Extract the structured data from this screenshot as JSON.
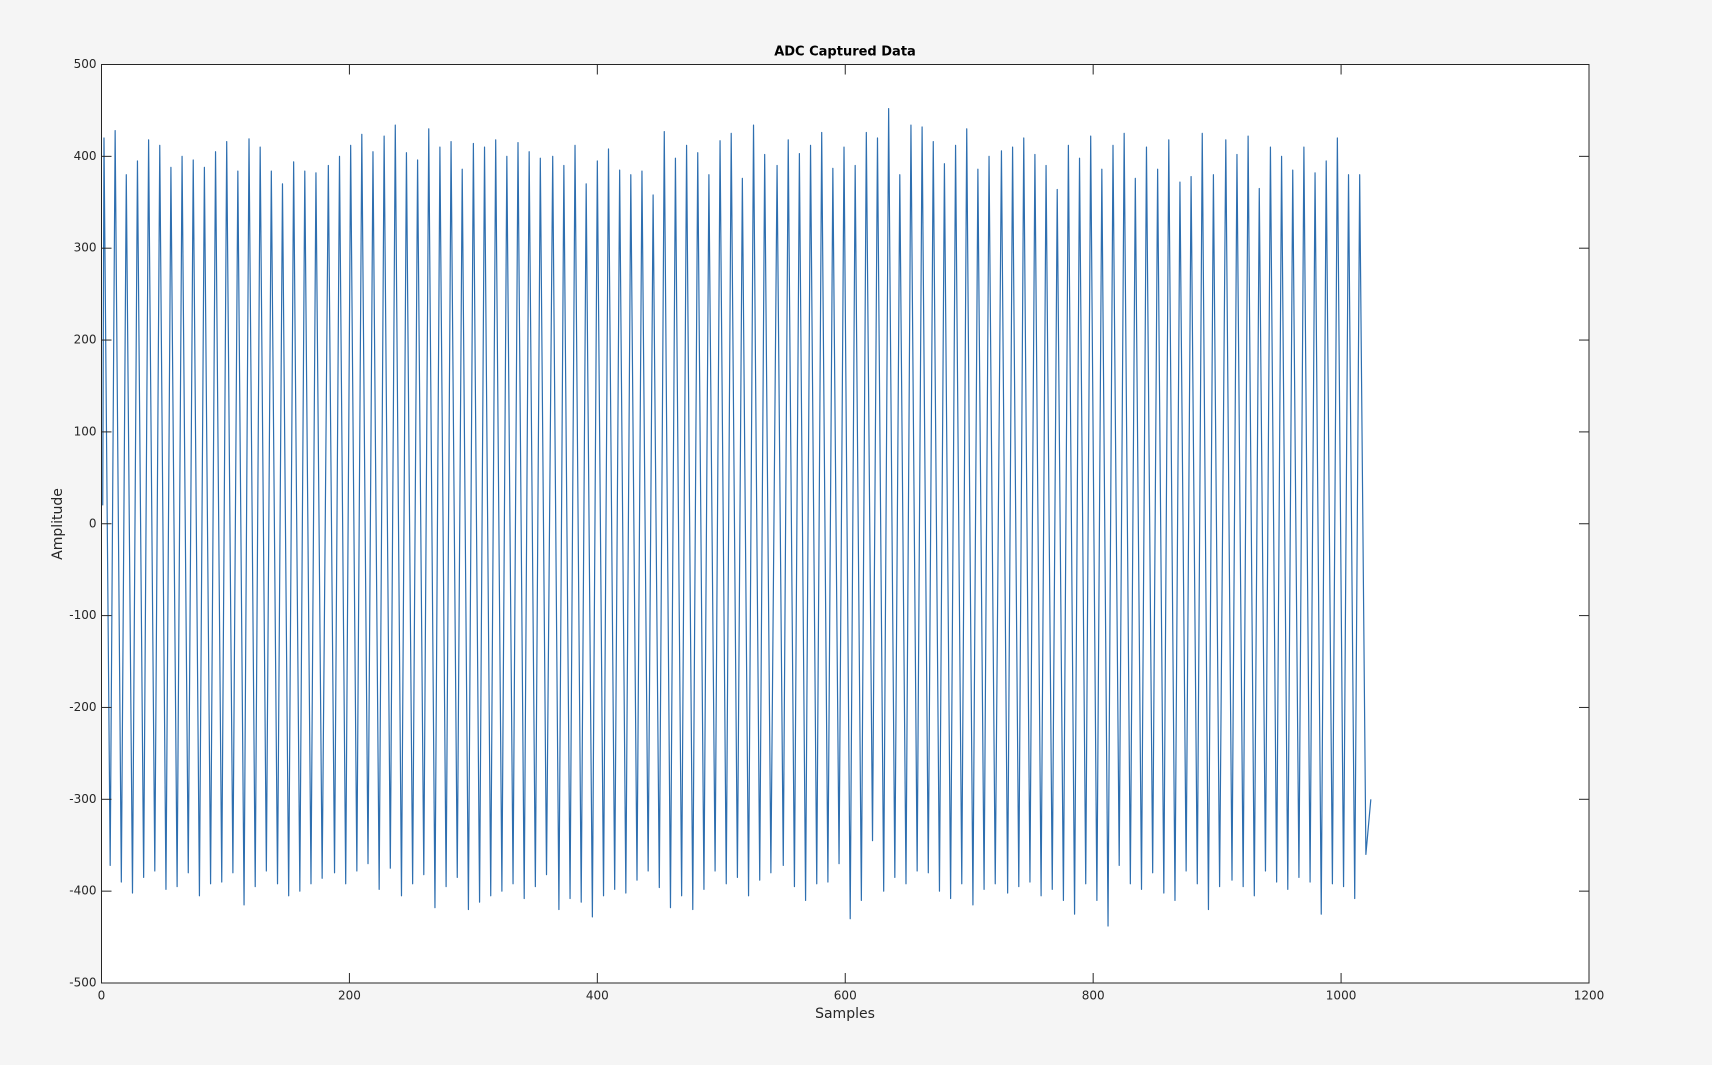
{
  "chart_data": {
    "type": "line",
    "title": "ADC Captured Data",
    "xlabel": "Samples",
    "ylabel": "Amplitude",
    "color": "#2e6fb0",
    "xlim": [
      0,
      1200
    ],
    "xticks": [
      0,
      200,
      400,
      600,
      800,
      1000,
      1200
    ],
    "ylim": [
      -500,
      500
    ],
    "yticks": [
      -500,
      -400,
      -300,
      -200,
      -100,
      0,
      100,
      200,
      300,
      400,
      500
    ],
    "x": [
      1,
      2,
      7,
      11,
      16,
      20,
      25,
      29,
      34,
      38,
      43,
      47,
      52,
      56,
      61,
      65,
      70,
      74,
      79,
      83,
      88,
      92,
      97,
      101,
      106,
      110,
      115,
      119,
      124,
      128,
      133,
      137,
      142,
      146,
      151,
      155,
      160,
      164,
      169,
      173,
      178,
      183,
      188,
      192,
      197,
      201,
      206,
      210,
      215,
      219,
      224,
      228,
      233,
      237,
      242,
      246,
      251,
      255,
      260,
      264,
      269,
      273,
      278,
      282,
      287,
      291,
      296,
      300,
      305,
      309,
      314,
      318,
      323,
      327,
      332,
      336,
      341,
      345,
      350,
      354,
      359,
      364,
      369,
      373,
      378,
      382,
      387,
      391,
      396,
      400,
      405,
      409,
      414,
      418,
      423,
      427,
      432,
      436,
      441,
      445,
      450,
      454,
      459,
      463,
      468,
      472,
      477,
      481,
      486,
      490,
      495,
      499,
      504,
      508,
      513,
      517,
      522,
      526,
      531,
      535,
      540,
      545,
      550,
      554,
      559,
      563,
      568,
      572,
      577,
      581,
      586,
      590,
      595,
      599,
      604,
      608,
      613,
      617,
      622,
      626,
      631,
      635,
      640,
      644,
      649,
      653,
      658,
      662,
      667,
      671,
      676,
      680,
      685,
      689,
      694,
      698,
      703,
      707,
      712,
      716,
      721,
      726,
      731,
      735,
      740,
      744,
      749,
      753,
      758,
      762,
      767,
      771,
      776,
      780,
      785,
      789,
      794,
      798,
      803,
      807,
      812,
      816,
      821,
      825,
      830,
      834,
      839,
      843,
      848,
      852,
      857,
      861,
      866,
      870,
      875,
      879,
      884,
      888,
      893,
      897,
      902,
      907,
      912,
      916,
      921,
      925,
      930,
      934,
      939,
      943,
      948,
      952,
      957,
      961,
      966,
      970,
      975,
      979,
      984,
      988,
      993,
      997,
      1002,
      1006,
      1011,
      1015,
      1020,
      1024
    ],
    "values": [
      20,
      420,
      -372,
      428,
      -390,
      380,
      -402,
      395,
      -385,
      418,
      -378,
      412,
      -398,
      388,
      -395,
      400,
      -380,
      396,
      -405,
      388,
      -392,
      405,
      -390,
      416,
      -380,
      384,
      -415,
      419,
      -395,
      410,
      -378,
      384,
      -392,
      370,
      -405,
      394,
      -400,
      384,
      -392,
      382,
      -386,
      390,
      -380,
      400,
      -392,
      412,
      -378,
      424,
      -370,
      405,
      -398,
      422,
      -375,
      434,
      -405,
      404,
      -392,
      396,
      -382,
      430,
      -418,
      410,
      -395,
      416,
      -385,
      386,
      -420,
      414,
      -412,
      410,
      -405,
      418,
      -400,
      400,
      -392,
      415,
      -408,
      405,
      -395,
      398,
      -382,
      400,
      -420,
      390,
      -408,
      412,
      -412,
      370,
      -428,
      395,
      -405,
      408,
      -398,
      385,
      -402,
      380,
      -388,
      384,
      -378,
      358,
      -396,
      427,
      -418,
      398,
      -405,
      412,
      -420,
      404,
      -398,
      380,
      -378,
      417,
      -392,
      425,
      -385,
      376,
      -405,
      434,
      -388,
      402,
      -380,
      390,
      -372,
      418,
      -395,
      403,
      -410,
      412,
      -392,
      426,
      -390,
      387,
      -370,
      410,
      -430,
      390,
      -410,
      426,
      -345,
      420,
      -400,
      452,
      -385,
      380,
      -392,
      434,
      -378,
      432,
      -380,
      416,
      -400,
      392,
      -408,
      412,
      -392,
      430,
      -415,
      386,
      -398,
      400,
      -392,
      406,
      -402,
      410,
      -395,
      420,
      -390,
      402,
      -405,
      390,
      -398,
      364,
      -410,
      412,
      -425,
      398,
      -392,
      422,
      -410,
      386,
      -438,
      412,
      -372,
      425,
      -392,
      376,
      -398,
      410,
      -380,
      386,
      -402,
      418,
      -410,
      372,
      -378,
      378,
      -392,
      425,
      -420,
      380,
      -395,
      418,
      -388,
      402,
      -395,
      422,
      -405,
      365,
      -378,
      410,
      -390,
      400,
      -398,
      385,
      -385,
      410,
      -390,
      382,
      -425,
      395,
      -392,
      420,
      -395,
      380,
      -408,
      380,
      -360,
      -300
    ]
  }
}
